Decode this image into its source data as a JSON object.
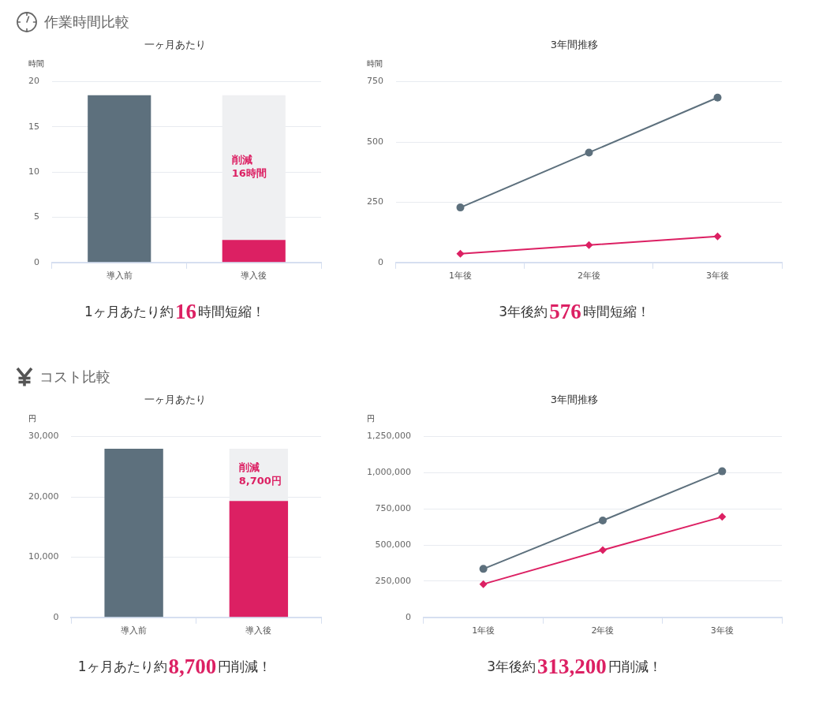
{
  "chart_data": [
    {
      "type": "bar",
      "title": "作業時間比較",
      "subtitle": "一ヶ月あたり",
      "ylabel": "時間",
      "categories": [
        "導入前",
        "導入後"
      ],
      "stacked": true,
      "series": [
        {
          "color": "#5d707d",
          "values": [
            18.5,
            null
          ]
        },
        {
          "color": "#dc2063",
          "values": [
            null,
            2.5
          ]
        },
        {
          "color": "#eff0f2",
          "values": [
            null,
            16
          ],
          "value_labels": [
            null,
            "削減\n16時間"
          ]
        }
      ],
      "ylim": [
        0,
        20
      ],
      "yticks": [
        0,
        5,
        10,
        15,
        20
      ],
      "grid": "y",
      "annotations": [
        "1ヶ月あたり約16時間短縮！"
      ]
    },
    {
      "type": "line",
      "subtitle": "3年間推移",
      "ylabel": "時間",
      "categories": [
        "1年後",
        "2年後",
        "3年後"
      ],
      "series": [
        {
          "color": "#5d707d",
          "values": [
            228,
            456,
            684
          ],
          "marker": "circle"
        },
        {
          "color": "#dc2063",
          "values": [
            36,
            72,
            108
          ],
          "marker": "diamond"
        }
      ],
      "ylim": [
        0,
        750
      ],
      "yticks": [
        0,
        250,
        500,
        750
      ],
      "grid": "y",
      "annotations": [
        "3年後約576時間短縮！"
      ]
    },
    {
      "type": "bar",
      "title": "コスト比較",
      "subtitle": "一ヶ月あたり",
      "ylabel": "円",
      "categories": [
        "導入前",
        "導入後"
      ],
      "stacked": true,
      "series": [
        {
          "color": "#5d707d",
          "values": [
            28000,
            null
          ]
        },
        {
          "color": "#dc2063",
          "values": [
            null,
            19300
          ]
        },
        {
          "color": "#eff0f2",
          "values": [
            null,
            8700
          ],
          "value_labels": [
            null,
            "削減\n8,700円"
          ]
        }
      ],
      "ylim": [
        0,
        30000
      ],
      "yticks": [
        0,
        {
          "value": 10000,
          "label": "10,000"
        },
        {
          "value": 20000,
          "label": "20,000"
        },
        {
          "value": 30000,
          "label": "30,000"
        }
      ],
      "grid": "y",
      "annotations": [
        "1ヶ月あたり約8,700円削減！"
      ]
    },
    {
      "type": "line",
      "subtitle": "3年間推移",
      "ylabel": "円",
      "categories": [
        "1年後",
        "2年後",
        "3年後"
      ],
      "series": [
        {
          "color": "#5d707d",
          "values": [
            335000,
            670000,
            1010000
          ],
          "marker": "circle"
        },
        {
          "color": "#dc2063",
          "values": [
            230000,
            465000,
            695000
          ],
          "marker": "diamond"
        }
      ],
      "ylim": [
        0,
        1250000
      ],
      "yticks": [
        0,
        {
          "value": 250000,
          "label": "250,000"
        },
        {
          "value": 500000,
          "label": "500,000"
        },
        {
          "value": 750000,
          "label": "750,000"
        },
        {
          "value": 1000000,
          "label": "1,000,000"
        },
        {
          "value": 1250000,
          "label": "1,250,000"
        }
      ],
      "grid": "y",
      "annotations": [
        "3年後約313,200円削減！"
      ]
    }
  ]
}
